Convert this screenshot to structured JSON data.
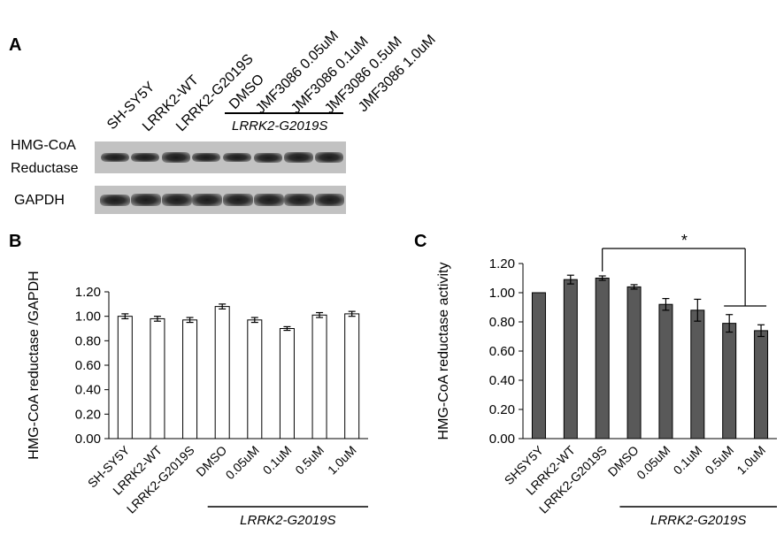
{
  "panel_a": {
    "label": "A",
    "lane_labels": [
      "SH-SY5Y",
      "LRRK2-WT",
      "LRRK2-G2019S",
      "DMSO",
      "JMF3086 0.05uM",
      "JMF3086 0.1uM",
      "JMF3086 0.5uM",
      "JMF3086 1.0uM"
    ],
    "group_label": "LRRK2-G2019S",
    "row_labels": {
      "hmg_line1": "HMG-CoA",
      "hmg_line2": "Reductase",
      "gapdh": "GAPDH"
    }
  },
  "panel_b": {
    "label": "B",
    "group_label": "LRRK2-G2019S"
  },
  "panel_c": {
    "label": "C",
    "group_label": "LRRK2-G2019S",
    "significance": "*"
  },
  "chart_data": [
    {
      "type": "bar",
      "panel": "B",
      "categories": [
        "SH-SY5Y",
        "LRRK2-WT",
        "LRRK2-G2019S",
        "DMSO",
        "0.05uM",
        "0.1uM",
        "0.5uM",
        "1.0uM"
      ],
      "values": [
        1.0,
        0.98,
        0.97,
        1.08,
        0.97,
        0.9,
        1.01,
        1.02
      ],
      "errors": [
        0.02,
        0.02,
        0.02,
        0.02,
        0.02,
        0.015,
        0.02,
        0.02
      ],
      "ylabel": "HMG-CoA  reductase /GAPDH",
      "ylim": [
        0,
        1.2
      ],
      "yticks": [
        "0.00",
        "0.20",
        "0.40",
        "0.60",
        "0.80",
        "1.00",
        "1.20"
      ],
      "bar_color": "#ffffff"
    },
    {
      "type": "bar",
      "panel": "C",
      "categories": [
        "SHSY5Y",
        "LRRK2-WT",
        "LRRK2-G2019S",
        "DMSO",
        "0.05uM",
        "0.1uM",
        "0.5uM",
        "1.0uM"
      ],
      "values": [
        1.0,
        1.09,
        1.1,
        1.04,
        0.92,
        0.88,
        0.79,
        0.74
      ],
      "errors": [
        0.0,
        0.03,
        0.015,
        0.015,
        0.04,
        0.075,
        0.06,
        0.04
      ],
      "ylabel": "HMG-CoA  reductase activity",
      "ylim": [
        0,
        1.2
      ],
      "yticks": [
        "0.00",
        "0.20",
        "0.40",
        "0.60",
        "0.80",
        "1.00",
        "1.20"
      ],
      "bar_color": "#595959"
    }
  ]
}
